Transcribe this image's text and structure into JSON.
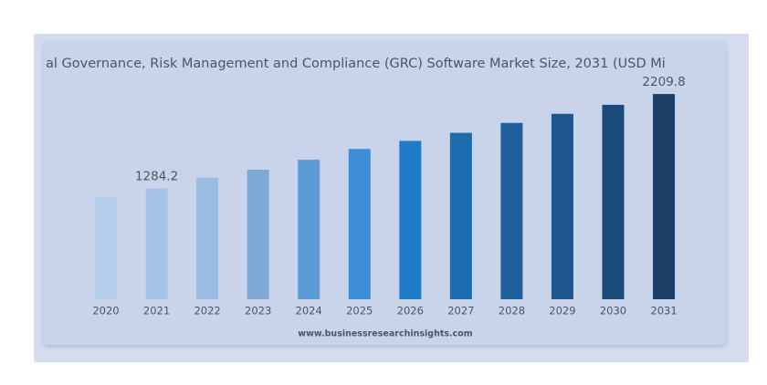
{
  "chart_data": {
    "type": "bar",
    "title": "al Governance, Risk Management and Compliance (GRC) Software Market Size, 2031 (USD Mi",
    "categories": [
      "2020",
      "2021",
      "2022",
      "2023",
      "2024",
      "2025",
      "2026",
      "2027",
      "2028",
      "2029",
      "2030",
      "2031"
    ],
    "values": [
      1196,
      1284.2,
      1390,
      1469,
      1566,
      1672,
      1751,
      1830,
      1927,
      2016,
      2104,
      2209.8
    ],
    "value_labels": [
      null,
      "1284.2",
      null,
      null,
      null,
      null,
      null,
      null,
      null,
      null,
      null,
      "2209.8"
    ],
    "colors": [
      "#b3cdeb",
      "#a6c3e6",
      "#9bbde3",
      "#7ea9d5",
      "#5b9bd5",
      "#3d8ed6",
      "#1f7cc8",
      "#1d6cb0",
      "#1f5f9e",
      "#1e5690",
      "#1c4a7a",
      "#1b3f66"
    ],
    "ylim": [
      200,
      2300
    ],
    "source": "www.businessresearchinsights.com"
  }
}
